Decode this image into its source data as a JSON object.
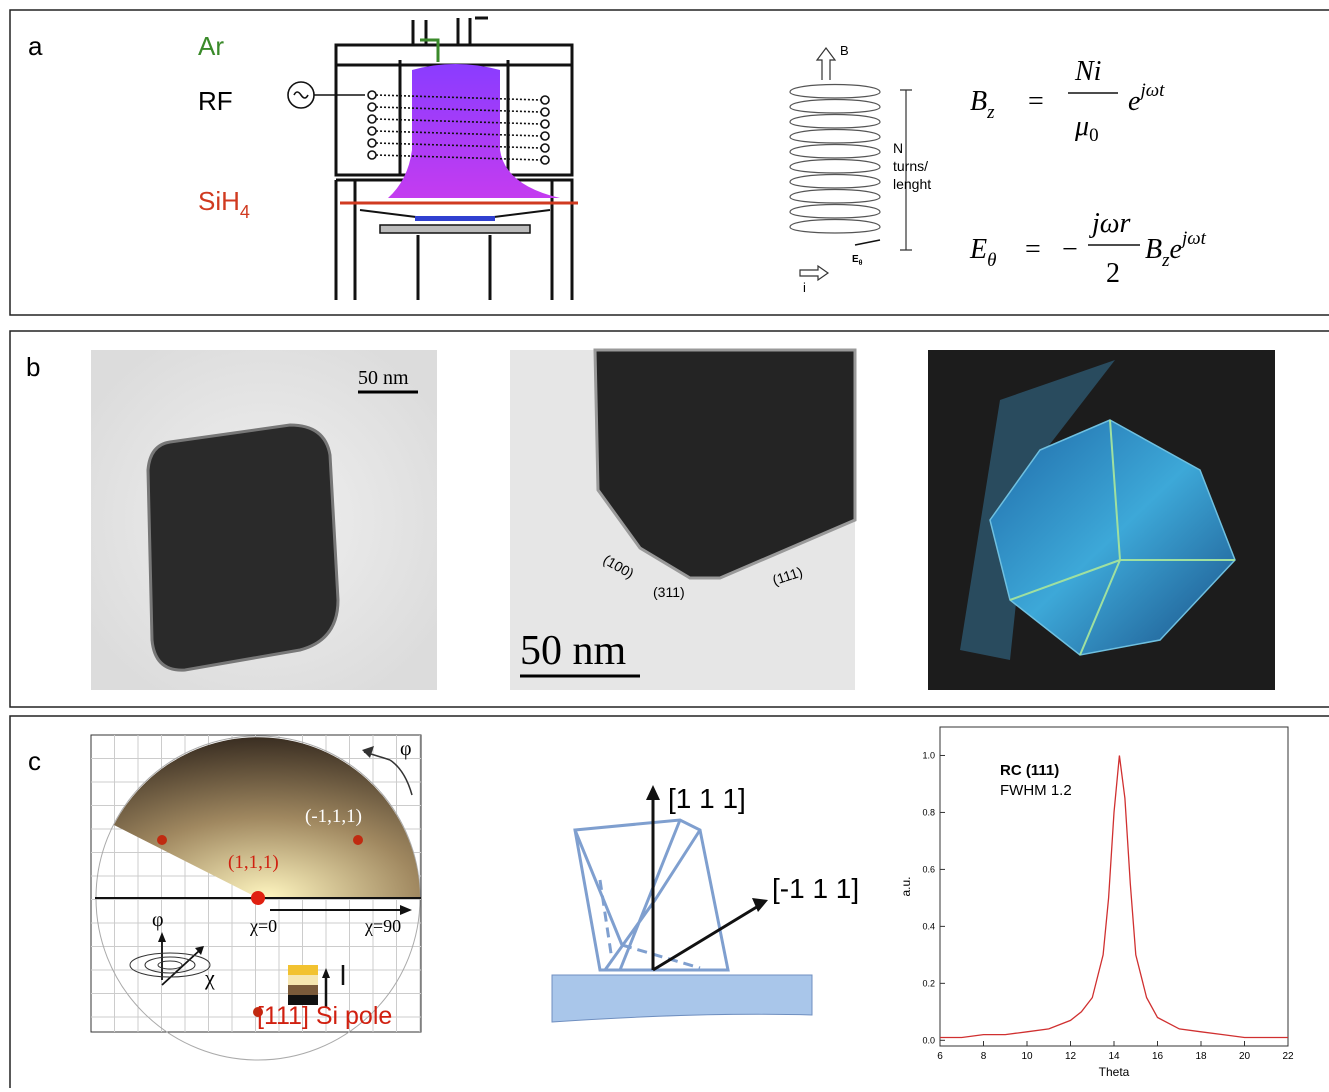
{
  "panel_a": {
    "label": "a",
    "gases": {
      "ar": "Ar",
      "rf": "RF",
      "sih4": {
        "base": "SiH",
        "sub": "4"
      }
    },
    "coil": {
      "b": "B",
      "n": "N",
      "turns": "turns/",
      "length": "lenght",
      "e": {
        "base": "E",
        "sub": "θ"
      },
      "i": "i"
    },
    "eq1": {
      "lhs": "B",
      "lhs_sub": "z",
      "eq": "=",
      "num": "Ni",
      "den": "μ",
      "den_sub": "0",
      "exp_base": "e",
      "exp": "jωt"
    },
    "eq2": {
      "lhs": "E",
      "lhs_sub": "θ",
      "eq": "=",
      "minus": "−",
      "num": "jωr",
      "den": "2",
      "factor": "B",
      "factor_sub": "z",
      "exp_base": "e",
      "exp": "jωt"
    }
  },
  "panel_b": {
    "label": "b",
    "scale_1": "50 nm",
    "scale_2": "50 nm",
    "facets": [
      "(100)",
      "(311)",
      "(111)"
    ]
  },
  "panel_c": {
    "label": "c",
    "pole_figure": {
      "phi": "φ",
      "pole_minus": "(-1,1,1)",
      "pole_111": "(1,1,1)",
      "chi0": "χ=0",
      "chi90": "χ=90",
      "axis_phi": "φ",
      "axis_chi": "χ",
      "caption": "[111] Si pole"
    },
    "crystal": {
      "dir_111": "[1 1 1]",
      "dir_m111": "[-1 1 1]"
    }
  },
  "chart_data": {
    "type": "line",
    "annotation": "RC (111)",
    "subannotation": "FWHM 1.2",
    "xlabel": "Theta",
    "ylabel": "a.u.",
    "x": [
      6,
      7,
      8,
      9,
      10,
      11,
      12,
      12.5,
      13,
      13.5,
      13.75,
      14,
      14.25,
      14.5,
      14.75,
      15,
      15.5,
      16,
      17,
      18,
      19,
      20,
      21,
      22
    ],
    "series": [
      {
        "color": "#d03030",
        "values": [
          0.01,
          0.01,
          0.02,
          0.02,
          0.03,
          0.04,
          0.07,
          0.1,
          0.15,
          0.3,
          0.5,
          0.8,
          1.0,
          0.85,
          0.55,
          0.3,
          0.15,
          0.08,
          0.04,
          0.03,
          0.02,
          0.01,
          0.01,
          0.01
        ]
      }
    ],
    "xlim": [
      6,
      22
    ],
    "xticks": [
      6,
      8,
      10,
      12,
      14,
      16,
      18,
      20,
      22
    ],
    "ylim": [
      -0.02,
      1.1
    ],
    "yticks": [
      {
        "value": 0,
        "label": "0.0"
      },
      0.2,
      0.4,
      0.6,
      0.8,
      {
        "value": 1,
        "label": "1.0"
      }
    ]
  }
}
